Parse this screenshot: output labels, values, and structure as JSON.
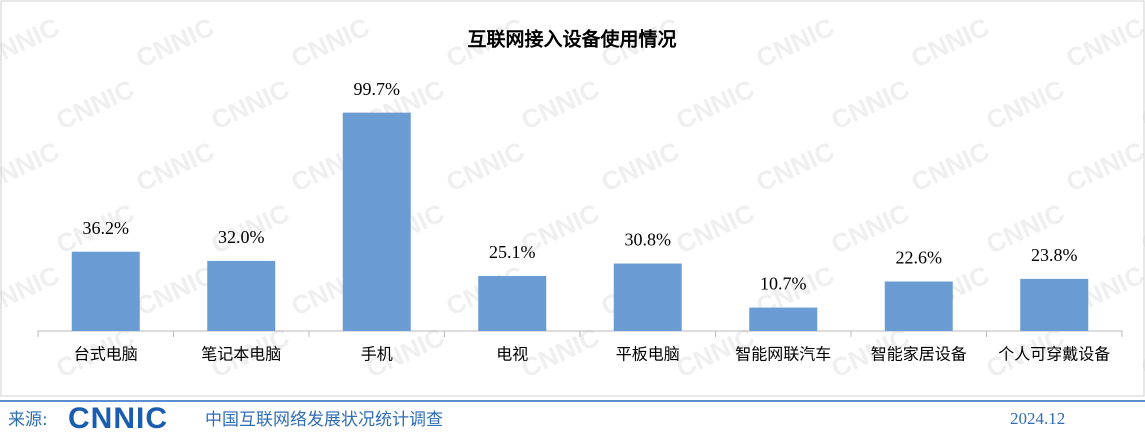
{
  "chart_data": {
    "type": "bar",
    "title": "互联网接入设备使用情况",
    "categories": [
      "台式电脑",
      "笔记本电脑",
      "手机",
      "电视",
      "平板电脑",
      "智能网联汽车",
      "智能家居设备",
      "个人可穿戴设备"
    ],
    "values": [
      36.2,
      32.0,
      99.7,
      25.1,
      30.8,
      10.7,
      22.6,
      23.8
    ],
    "value_labels": [
      "36.2%",
      "32.0%",
      "99.7%",
      "25.1%",
      "30.8%",
      "10.7%",
      "22.6%",
      "23.8%"
    ],
    "color": "#6a9bd3",
    "ylim": [
      0,
      100
    ]
  },
  "watermark": "CNNIC",
  "footer": {
    "source_label": "来源:",
    "logo": "CNNIC",
    "source": "中国互联网络发展状况统计调查",
    "date": "2024.12"
  }
}
